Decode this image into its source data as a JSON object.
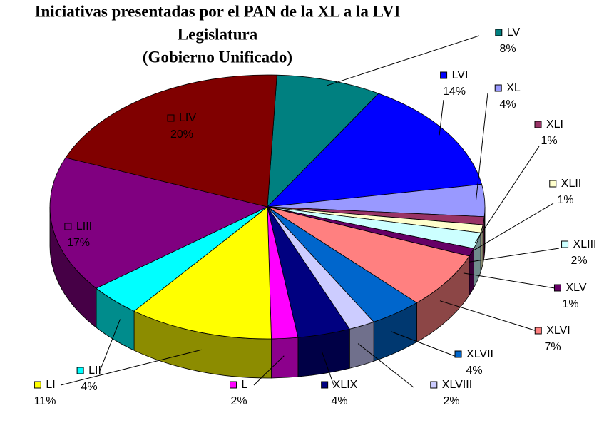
{
  "chart_data": {
    "type": "pie",
    "title": [
      "Iniciativas presentadas por el PAN de la XL a la LVI",
      "Legislatura",
      "(Gobierno Unificado)"
    ],
    "categories": [
      "LV",
      "LVI",
      "XL",
      "XLI",
      "XLII",
      "XLIII",
      "XLV",
      "XLVI",
      "XLVII",
      "XLVIII",
      "XLIX",
      "L",
      "LI",
      "LII",
      "LIII",
      "LIV"
    ],
    "values": [
      8,
      14,
      4,
      1,
      1,
      2,
      1,
      7,
      4,
      2,
      4,
      2,
      11,
      4,
      17,
      20
    ],
    "value_labels": [
      "8%",
      "14%",
      "4%",
      "1%",
      "1%",
      "2%",
      "1%",
      "7%",
      "4%",
      "2%",
      "4%",
      "2%",
      "11%",
      "4%",
      "17%",
      "20%"
    ],
    "colors": [
      "#008080",
      "#0000ff",
      "#9999ff",
      "#993366",
      "#ffffcc",
      "#ccffff",
      "#660066",
      "#ff8080",
      "#0066cc",
      "#ccccff",
      "#000080",
      "#ff00ff",
      "#ffff00",
      "#00ffff",
      "#800080",
      "#800000"
    ]
  }
}
